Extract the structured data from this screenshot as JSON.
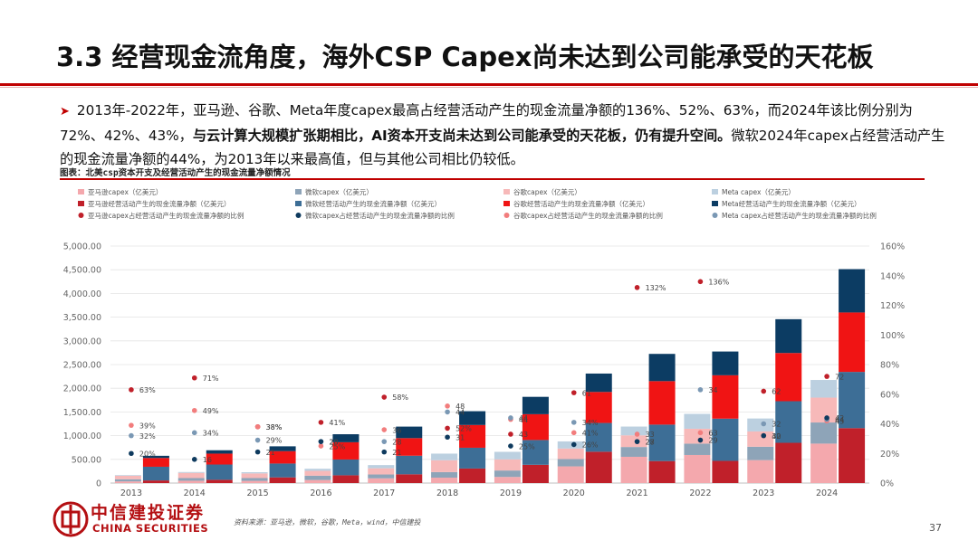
{
  "slide": {
    "title": "3.3 经营现金流角度，海外CSP Capex尚未达到公司能承受的天花板",
    "bullet_part1": "2013年-2022年，亚马逊、谷歌、Meta年度capex最高占经营活动产生的现金流量净额的136%、52%、63%，而2024年该比例分别为72%、42%、43%，",
    "bullet_bold": "与云计算大规模扩张期相比，AI资本开支尚未达到公司能承受的天花板，仍有提升空间。",
    "bullet_part2": "微软2024年capex占经营活动产生的现金流量净额的44%，为2013年以来最高值，但与其他公司相比仍较低。",
    "figure_caption": "图表：北美csp资本开支及经营活动产生的现金流量净额情况",
    "source": "资料来源：亚马逊，微软，谷歌，Meta，wind，中信建投",
    "page_number": "37",
    "logo_cn": "中信建投证券",
    "logo_en": "CHINA SECURITIES"
  },
  "colors": {
    "amazon_capex": "#f4a8ad",
    "amazon_cf": "#c0202a",
    "amazon_ratio": "#c0202a",
    "msft_capex": "#8ea4b8",
    "msft_cf": "#3d6e96",
    "msft_ratio": "#0e3a5e",
    "google_capex": "#f7b9b9",
    "google_cf": "#f01414",
    "google_ratio": "#f27d7d",
    "meta_capex": "#bcd0e0",
    "meta_cf": "#0c3c63",
    "meta_ratio": "#7a98b4",
    "accent": "#c00000"
  },
  "chart_data": {
    "type": "bar",
    "categories": [
      "2013",
      "2014",
      "2015",
      "2016",
      "2017",
      "2018",
      "2019",
      "2020",
      "2021",
      "2022",
      "2023",
      "2024"
    ],
    "y_left_ticks": [
      "0",
      "500.00",
      "1,000.00",
      "1,500.00",
      "2,000.00",
      "2,500.00",
      "3,000.00",
      "3,500.00",
      "4,000.00",
      "4,500.00",
      "5,000.00"
    ],
    "y_right_ticks": [
      "0%",
      "20%",
      "40%",
      "60%",
      "80%",
      "100%",
      "120%",
      "140%",
      "160%"
    ],
    "ylim_left": [
      0,
      5000
    ],
    "ylim_right": [
      0,
      160
    ],
    "legend_position": "top",
    "legend": [
      "亚马逊capex（亿美元）",
      "微软capex（亿美元）",
      "谷歌capex（亿美元）",
      "Meta capex（亿美元）",
      "亚马逊经营活动产生的现金流量净额（亿美元）",
      "微软经营活动产生的现金流量净额（亿美元）",
      "谷歌经营活动产生的现金流量净额（亿美元）",
      "Meta经营活动产生的现金流量净额（亿美元）",
      "亚马逊capex占经营活动产生的现金流量净额的比例",
      "微软capex占经营活动产生的现金流量净额的比例",
      "谷歌capex占经营活动产生的现金流量净额的比例",
      "Meta capex占经营活动产生的现金流量净额的比例"
    ],
    "bar_series": [
      {
        "name": "亚马逊capex（亿美元）",
        "stack": "capex",
        "values": [
          35,
          49,
          46,
          64,
          100,
          114,
          129,
          352,
          554,
          592,
          484,
          832
        ]
      },
      {
        "name": "微软capex（亿美元）",
        "stack": "capex",
        "values": [
          46,
          56,
          59,
          91,
          81,
          117,
          136,
          154,
          207,
          239,
          282,
          446
        ]
      },
      {
        "name": "谷歌capex（亿美元）",
        "stack": "capex",
        "values": [
          73,
          110,
          99,
          102,
          131,
          251,
          235,
          222,
          246,
          315,
          323,
          525
        ]
      },
      {
        "name": "Meta capex（亿美元）",
        "stack": "capex",
        "values": [
          14,
          18,
          25,
          45,
          67,
          139,
          159,
          151,
          185,
          314,
          273,
          372
        ]
      },
      {
        "name": "亚马逊经营活动产生的现金流量净额（亿美元）",
        "stack": "cf",
        "values": [
          55,
          69,
          120,
          164,
          185,
          307,
          385,
          661,
          464,
          468,
          849,
          1159
        ]
      },
      {
        "name": "微软经营活动产生的现金流量净额（亿美元）",
        "stack": "cf",
        "values": [
          289,
          322,
          292,
          333,
          392,
          438,
          523,
          607,
          769,
          891,
          878,
          1186
        ]
      },
      {
        "name": "谷歌经营活动产生的现金流量净额（亿美元）",
        "stack": "cf",
        "values": [
          185,
          230,
          261,
          364,
          371,
          480,
          545,
          654,
          917,
          915,
          1017,
          1254
        ]
      },
      {
        "name": "Meta经营活动产生的现金流量净额（亿美元）",
        "stack": "cf",
        "values": [
          46,
          71,
          102,
          169,
          243,
          291,
          366,
          388,
          575,
          501,
          713,
          914
        ]
      }
    ],
    "ratio_series": [
      {
        "name": "亚马逊capex占经营活动产生的现金流量净额的比例",
        "values": [
          63,
          71,
          38,
          41,
          58,
          37,
          33,
          61,
          132,
          136,
          62,
          72
        ]
      },
      {
        "name": "微软capex占经营活动产生的现金流量净额的比例",
        "values": [
          20,
          16,
          21,
          28,
          21,
          31,
          25,
          26,
          28,
          29,
          32,
          44
        ]
      },
      {
        "name": "谷歌capex占经营活动产生的现金流量净额的比例",
        "values": [
          39,
          49,
          38,
          25,
          36,
          52,
          43,
          34,
          33,
          34,
          32,
          42
        ]
      },
      {
        "name": "Meta capex占经营活动产生的现金流量净额的比例",
        "values": [
          32,
          34,
          29,
          28,
          28,
          48,
          44,
          41,
          28,
          63,
          40,
          43
        ]
      }
    ],
    "ratio_labels": [
      [
        "63%",
        "39%",
        "32%",
        "20%"
      ],
      [
        "71%",
        "49%",
        "34%",
        "16"
      ],
      [
        "38%",
        "38%",
        "29%",
        "21"
      ],
      [
        "41%",
        "25%",
        "28",
        "28"
      ],
      [
        "58%",
        "36",
        "28",
        "21"
      ],
      [
        "52%",
        "48",
        "44",
        "31"
      ],
      [
        "43",
        "44",
        "44",
        "25%"
      ],
      [
        "61",
        "41%",
        "34%",
        "26%"
      ],
      [
        "132%",
        "33",
        "28",
        "27"
      ],
      [
        "136%",
        "63",
        "34",
        "29"
      ],
      [
        "62",
        "40",
        "32",
        "32"
      ],
      [
        "72",
        "43",
        "44",
        "42"
      ]
    ]
  }
}
